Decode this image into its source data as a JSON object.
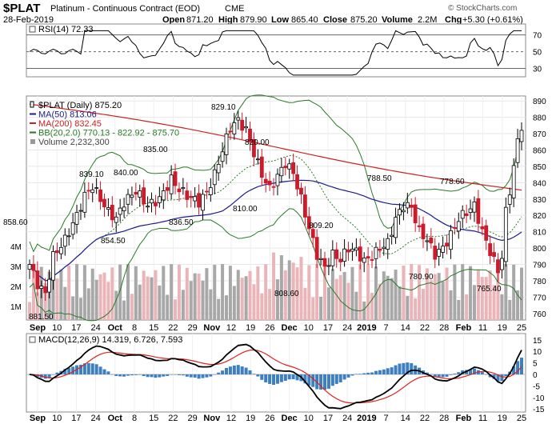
{
  "header": {
    "symbol": "$PLAT",
    "name": "Platinum - Continuous Contract (EOD)",
    "exchange": "CME",
    "date": "28-Feb-2019",
    "open_label": "Open",
    "open": "871.20",
    "high_label": "High",
    "high": "879.90",
    "low_label": "Low",
    "low": "865.40",
    "close_label": "Close",
    "close": "875.20",
    "volume_label": "Volume",
    "volume": "2.2M",
    "chg_label": "Chg",
    "chg": "+5.30 (+0.61%)",
    "watermark": "© StockCharts.com"
  },
  "rsi": {
    "label": "RSI(14) 72.33",
    "ticks": [
      "70",
      "50",
      "30"
    ],
    "overbought": 70,
    "oversold": 30,
    "line_color": "#000000"
  },
  "price": {
    "legend": [
      {
        "text": "$PLAT (Daily) 875.20",
        "color": "#000000",
        "swatch": "candle"
      },
      {
        "text": "MA(50) 813.06",
        "color": "#1c1c8c",
        "swatch": "line"
      },
      {
        "text": "MA(200) 832.45",
        "color": "#cc2222",
        "swatch": "line"
      },
      {
        "text": "BB(20,2.0) 770.13 - 822.92 - 875.70",
        "color": "#2a7a2a",
        "swatch": "line"
      },
      {
        "text": "Volume 2,232,300",
        "color": "#999999",
        "swatch": "bar"
      }
    ],
    "y_ticks": [
      "890",
      "880",
      "870",
      "860",
      "850",
      "840",
      "830",
      "820",
      "810",
      "800",
      "790",
      "780",
      "770",
      "760"
    ],
    "volume_ticks": [
      "4M",
      "3M",
      "2M",
      "1M"
    ],
    "annotations": [
      "881.50",
      "858.60",
      "854.50",
      "839.10",
      "840.00",
      "836.50",
      "835.00",
      "829.10",
      "820.00",
      "810.00",
      "809.20",
      "808.60",
      "788.50",
      "780.90",
      "778.60",
      "765.40"
    ],
    "up_color": "#000000",
    "down_color": "#cc1b2b",
    "volume_up_color": "#a8a8a8",
    "volume_down_color": "#eab5b8"
  },
  "macd": {
    "label": "MACD(12,26,9) 14.319, 6.726, 7.593",
    "ticks": [
      "15",
      "10",
      "5",
      "0",
      "-5",
      "-10",
      "-15"
    ],
    "macd_color": "#000000",
    "signal_color": "#dd2222",
    "hist_color": "#3d7fbf"
  },
  "x_axis": {
    "labels": [
      "Sep",
      "10",
      "17",
      "24",
      "Oct",
      "8",
      "15",
      "22",
      "29",
      "Nov",
      "12",
      "19",
      "26",
      "Dec",
      "10",
      "17",
      "24",
      "2019",
      "7",
      "14",
      "22",
      "28",
      "Feb",
      "11",
      "19",
      "25"
    ]
  },
  "chart_data": [
    {
      "type": "candlestick",
      "title": "$PLAT (Daily) 875.20",
      "ylim": [
        760,
        890
      ],
      "x_range": [
        "Sep",
        "28-Feb-2019"
      ],
      "series": [
        {
          "name": "MA(50) 813.06",
          "last": 813.06
        },
        {
          "name": "MA(200) 832.45",
          "last": 832.45
        },
        {
          "name": "BB(20,2.0) 770.13 - 822.92 - 875.70",
          "lower": 770.13,
          "mid": 822.92,
          "upper": 875.7
        },
        {
          "name": "Volume 2,232,300",
          "last": 2232300
        }
      ],
      "points": [
        {
          "label": "765.40",
          "value": 765.4
        },
        {
          "label": "810.00",
          "value": 810.0
        },
        {
          "label": "809.20",
          "value": 809.2
        },
        {
          "label": "839.10",
          "value": 839.1
        },
        {
          "label": "840.00",
          "value": 840.0
        },
        {
          "label": "820.00",
          "value": 820.0
        },
        {
          "label": "854.50",
          "value": 854.5
        },
        {
          "label": "881.50",
          "value": 881.5
        },
        {
          "label": "858.60",
          "value": 858.6
        },
        {
          "label": "829.10",
          "value": 829.1
        },
        {
          "label": "808.60",
          "value": 808.6
        },
        {
          "label": "778.60",
          "value": 778.6
        },
        {
          "label": "836.50",
          "value": 836.5
        },
        {
          "label": "788.50",
          "value": 788.5
        },
        {
          "label": "835.00",
          "value": 835.0
        },
        {
          "label": "780.90",
          "value": 780.9
        },
        {
          "label": "875.20",
          "value": 875.2
        }
      ],
      "legend": "top-left",
      "grid": true
    },
    {
      "type": "line",
      "title": "RSI(14) 72.33",
      "ylim": [
        20,
        80
      ],
      "reference_lines": [
        70,
        50,
        30
      ],
      "last": 72.33
    },
    {
      "type": "line",
      "title": "MACD(12,26,9) 14.319, 6.726, 7.593",
      "ylim": [
        -17,
        17
      ],
      "series": [
        {
          "name": "MACD",
          "last": 14.319
        },
        {
          "name": "Signal",
          "last": 6.726
        },
        {
          "name": "Histogram",
          "last": 7.593
        }
      ]
    }
  ]
}
